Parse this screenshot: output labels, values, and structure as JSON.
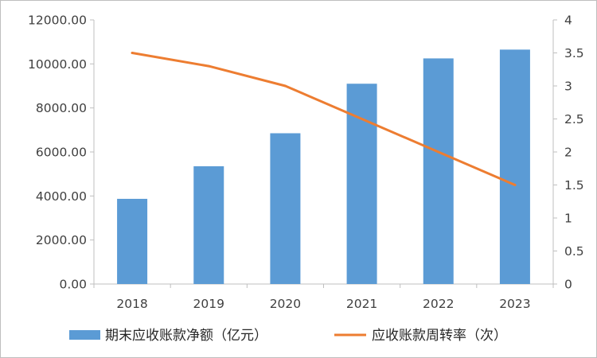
{
  "chart_data": {
    "type": "bar+line",
    "categories": [
      "2018",
      "2019",
      "2020",
      "2021",
      "2022",
      "2023"
    ],
    "series": [
      {
        "name": "期末应收账款净额（亿元）",
        "type": "bar",
        "axis": "left",
        "color": "#5b9bd5",
        "values": [
          3870,
          5350,
          6850,
          9100,
          10250,
          10650
        ]
      },
      {
        "name": "应收账款周转率（次）",
        "type": "line",
        "axis": "right",
        "color": "#ed7d31",
        "values": [
          3.5,
          3.3,
          3.0,
          2.5,
          2.0,
          1.5
        ]
      }
    ],
    "y_left": {
      "range": [
        0,
        12000
      ],
      "ticks": [
        "0.00",
        "2000.00",
        "4000.00",
        "6000.00",
        "8000.00",
        "10000.00",
        "12000.00"
      ],
      "tick_values": [
        0,
        2000,
        4000,
        6000,
        8000,
        10000,
        12000
      ]
    },
    "y_right": {
      "range": [
        0,
        4
      ],
      "ticks": [
        "0",
        "0.5",
        "1",
        "1.5",
        "2",
        "2.5",
        "3",
        "3.5",
        "4"
      ],
      "tick_values": [
        0,
        0.5,
        1,
        1.5,
        2,
        2.5,
        3,
        3.5,
        4
      ]
    },
    "grid": false,
    "legend": "bottom"
  }
}
